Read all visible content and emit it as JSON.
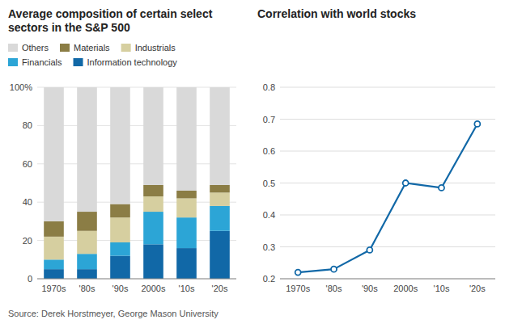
{
  "chart_data": [
    {
      "type": "bar",
      "stacked": true,
      "title": "Average composition of certain select sectors in the S&P 500",
      "source": "Source: Derek Horstmeyer, George Mason University",
      "categories": [
        "1970s",
        "'80s",
        "'90s",
        "2000s",
        "'10s",
        "'20s"
      ],
      "series": [
        {
          "name": "Information technology",
          "color": "#1168a7",
          "values": [
            5,
            5,
            12,
            18,
            16,
            25
          ]
        },
        {
          "name": "Financials",
          "color": "#2ca5d6",
          "values": [
            5,
            8,
            7,
            17,
            16,
            13
          ]
        },
        {
          "name": "Industrials",
          "color": "#d6cfa0",
          "values": [
            12,
            12,
            13,
            8,
            10,
            7
          ]
        },
        {
          "name": "Materials",
          "color": "#8b7d45",
          "values": [
            8,
            10,
            7,
            6,
            4,
            4
          ]
        },
        {
          "name": "Others",
          "color": "#d9d9d9",
          "values": [
            70,
            65,
            61,
            51,
            54,
            51
          ]
        }
      ],
      "ylim": [
        0,
        100
      ],
      "yticks": [
        0,
        20,
        40,
        60,
        80,
        {
          "value": 100,
          "label": "100%"
        }
      ],
      "grid": true,
      "legend": "upper left"
    },
    {
      "type": "line",
      "title": "Correlation with world stocks",
      "categories": [
        "1970s",
        "'80s",
        "'90s",
        "2000s",
        "'10s",
        "'20s"
      ],
      "values": [
        0.22,
        0.23,
        0.29,
        0.5,
        0.485,
        0.685
      ],
      "color": "#1168a7",
      "marker": "circle",
      "line_style": "solid",
      "ylim": [
        0.2,
        0.8
      ],
      "yticks": [
        0.2,
        0.3,
        0.4,
        0.5,
        0.6,
        0.7,
        0.8
      ],
      "grid": true
    }
  ]
}
